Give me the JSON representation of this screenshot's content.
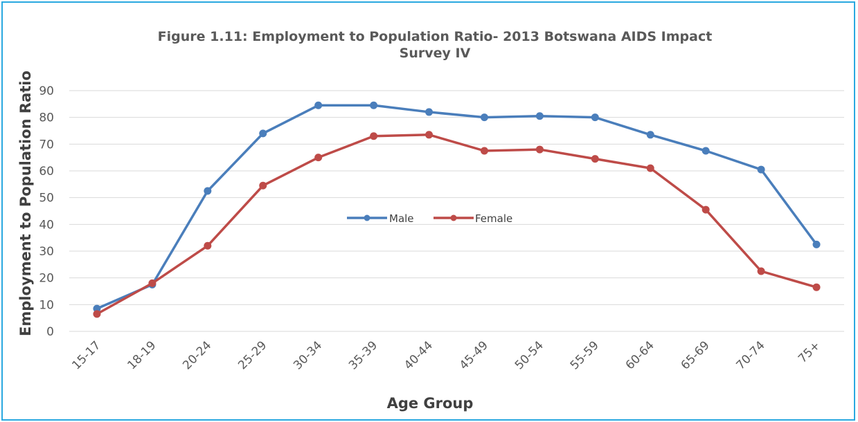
{
  "chart_data": {
    "type": "line",
    "title_line1": "Figure 1.11: Employment to Population Ratio- 2013 Botswana AIDS Impact",
    "title_line2": "Survey IV",
    "xlabel": "Age Group",
    "ylabel": "Employment to Population Ratio",
    "categories": [
      "15-17",
      "18-19",
      "20-24",
      "25-29",
      "30-34",
      "35-39",
      "40-44",
      "45-49",
      "50-54",
      "55-59",
      "60-64",
      "65-69",
      "70-74",
      "75+"
    ],
    "ylim": [
      0,
      90
    ],
    "yticks": [
      0,
      10,
      20,
      30,
      40,
      50,
      60,
      70,
      80,
      90
    ],
    "grid": true,
    "legend_position": "center",
    "series": [
      {
        "name": "Male",
        "color": "#4A7EBB",
        "values": [
          8.5,
          17.5,
          52.5,
          74,
          84.5,
          84.5,
          82,
          80,
          80.5,
          80,
          73.5,
          67.5,
          60.5,
          32.5
        ]
      },
      {
        "name": "Female",
        "color": "#BE4B48",
        "values": [
          6.5,
          18,
          32,
          54.5,
          65,
          73,
          73.5,
          67.5,
          68,
          64.5,
          61,
          45.5,
          22.5,
          16.5
        ]
      }
    ]
  }
}
